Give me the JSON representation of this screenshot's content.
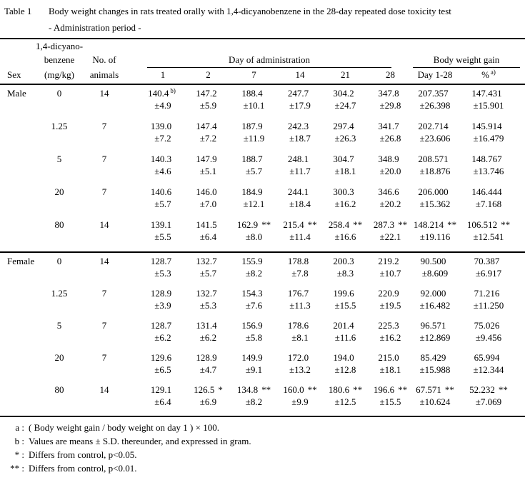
{
  "caption": {
    "number": "Table 1",
    "title": "Body weight changes in rats treated orally with 1,4-dicyanobenzene in the 28-day repeated dose toxicity test",
    "subtitle": "- Administration period -"
  },
  "header": {
    "sex": "Sex",
    "dose_line1": "1,4-dicyano-",
    "dose_line2": "benzene",
    "dose_line3": "(mg/kg)",
    "animals_line1": "No. of",
    "animals_line2": "animals",
    "day_group": "Day of administration",
    "day_columns": [
      "1",
      "2",
      "7",
      "14",
      "21",
      "28"
    ],
    "gain_group": "Body weight gain",
    "gain_column": "Day 1-28",
    "percent_column": "%",
    "percent_sup": "a)"
  },
  "sections": [
    {
      "sex": "Male",
      "rows": [
        {
          "dose": "0",
          "n": "14",
          "cells": [
            {
              "v": "140.4",
              "sup": "b)",
              "sd": "±4.9"
            },
            {
              "v": "147.2",
              "sd": "±5.9"
            },
            {
              "v": "188.4",
              "sd": "±10.1"
            },
            {
              "v": "247.7",
              "sd": "±17.9"
            },
            {
              "v": "304.2",
              "sd": "±24.7"
            },
            {
              "v": "347.8",
              "sd": "±29.8"
            },
            {
              "v": "207.357",
              "sd": "±26.398"
            },
            {
              "v": "147.431",
              "sd": "±15.901"
            }
          ]
        },
        {
          "dose": "1.25",
          "n": "7",
          "cells": [
            {
              "v": "139.0",
              "sd": "±7.2"
            },
            {
              "v": "147.4",
              "sd": "±7.2"
            },
            {
              "v": "187.9",
              "sd": "±11.9"
            },
            {
              "v": "242.3",
              "sd": "±18.7"
            },
            {
              "v": "297.4",
              "sd": "±26.3"
            },
            {
              "v": "341.7",
              "sd": "±26.8"
            },
            {
              "v": "202.714",
              "sd": "±23.606"
            },
            {
              "v": "145.914",
              "sd": "±16.479"
            }
          ]
        },
        {
          "dose": "5",
          "n": "7",
          "cells": [
            {
              "v": "140.3",
              "sd": "±4.6"
            },
            {
              "v": "147.9",
              "sd": "±5.1"
            },
            {
              "v": "188.7",
              "sd": "±5.7"
            },
            {
              "v": "248.1",
              "sd": "±11.7"
            },
            {
              "v": "304.7",
              "sd": "±18.1"
            },
            {
              "v": "348.9",
              "sd": "±20.0"
            },
            {
              "v": "208.571",
              "sd": "±18.876"
            },
            {
              "v": "148.767",
              "sd": "±13.746"
            }
          ]
        },
        {
          "dose": "20",
          "n": "7",
          "cells": [
            {
              "v": "140.6",
              "sd": "±5.7"
            },
            {
              "v": "146.0",
              "sd": "±7.0"
            },
            {
              "v": "184.9",
              "sd": "±12.1"
            },
            {
              "v": "244.1",
              "sd": "±18.4"
            },
            {
              "v": "300.3",
              "sd": "±16.2"
            },
            {
              "v": "346.6",
              "sd": "±20.2"
            },
            {
              "v": "206.000",
              "sd": "±15.362"
            },
            {
              "v": "146.444",
              "sd": "±7.168"
            }
          ]
        },
        {
          "dose": "80",
          "n": "14",
          "cells": [
            {
              "v": "139.1",
              "sd": "±5.5"
            },
            {
              "v": "141.5",
              "sd": "±6.4"
            },
            {
              "v": "162.9",
              "sig": "**",
              "sd": "±8.0"
            },
            {
              "v": "215.4",
              "sig": "**",
              "sd": "±11.4"
            },
            {
              "v": "258.4",
              "sig": "**",
              "sd": "±16.6"
            },
            {
              "v": "287.3",
              "sig": "**",
              "sd": "±22.1"
            },
            {
              "v": "148.214",
              "sig": "**",
              "sd": "±19.116"
            },
            {
              "v": "106.512",
              "sig": "**",
              "sd": "±12.541"
            }
          ]
        }
      ]
    },
    {
      "sex": "Female",
      "rows": [
        {
          "dose": "0",
          "n": "14",
          "cells": [
            {
              "v": "128.7",
              "sd": "±5.3"
            },
            {
              "v": "132.7",
              "sd": "±5.7"
            },
            {
              "v": "155.9",
              "sd": "±8.2"
            },
            {
              "v": "178.8",
              "sd": "±7.8"
            },
            {
              "v": "200.3",
              "sd": "±8.3"
            },
            {
              "v": "219.2",
              "sd": "±10.7"
            },
            {
              "v": "90.500",
              "sd": "±8.609"
            },
            {
              "v": "70.387",
              "sd": "±6.917"
            }
          ]
        },
        {
          "dose": "1.25",
          "n": "7",
          "cells": [
            {
              "v": "128.9",
              "sd": "±3.9"
            },
            {
              "v": "132.7",
              "sd": "±5.3"
            },
            {
              "v": "154.3",
              "sd": "±7.6"
            },
            {
              "v": "176.7",
              "sd": "±11.3"
            },
            {
              "v": "199.6",
              "sd": "±15.5"
            },
            {
              "v": "220.9",
              "sd": "±19.5"
            },
            {
              "v": "92.000",
              "sd": "±16.482"
            },
            {
              "v": "71.216",
              "sd": "±11.250"
            }
          ]
        },
        {
          "dose": "5",
          "n": "7",
          "cells": [
            {
              "v": "128.7",
              "sd": "±6.2"
            },
            {
              "v": "131.4",
              "sd": "±6.2"
            },
            {
              "v": "156.9",
              "sd": "±5.8"
            },
            {
              "v": "178.6",
              "sd": "±8.1"
            },
            {
              "v": "201.4",
              "sd": "±11.6"
            },
            {
              "v": "225.3",
              "sd": "±16.2"
            },
            {
              "v": "96.571",
              "sd": "±12.869"
            },
            {
              "v": "75.026",
              "sd": "±9.456"
            }
          ]
        },
        {
          "dose": "20",
          "n": "7",
          "cells": [
            {
              "v": "129.6",
              "sd": "±6.5"
            },
            {
              "v": "128.9",
              "sd": "±4.7"
            },
            {
              "v": "149.9",
              "sd": "±9.1"
            },
            {
              "v": "172.0",
              "sd": "±13.2"
            },
            {
              "v": "194.0",
              "sd": "±12.8"
            },
            {
              "v": "215.0",
              "sd": "±18.1"
            },
            {
              "v": "85.429",
              "sd": "±15.988"
            },
            {
              "v": "65.994",
              "sd": "±12.344"
            }
          ]
        },
        {
          "dose": "80",
          "n": "14",
          "cells": [
            {
              "v": "129.1",
              "sd": "±6.4"
            },
            {
              "v": "126.5",
              "sig": "*",
              "sd": "±6.9"
            },
            {
              "v": "134.8",
              "sig": "**",
              "sd": "±8.2"
            },
            {
              "v": "160.0",
              "sig": "**",
              "sd": "±9.9"
            },
            {
              "v": "180.6",
              "sig": "**",
              "sd": "±12.5"
            },
            {
              "v": "196.6",
              "sig": "**",
              "sd": "±15.5"
            },
            {
              "v": "67.571",
              "sig": "**",
              "sd": "±10.624"
            },
            {
              "v": "52.232",
              "sig": "**",
              "sd": "±7.069"
            }
          ]
        }
      ]
    }
  ],
  "footnotes": [
    {
      "label": "a :",
      "text": "( Body weight gain / body weight on day 1 ) × 100."
    },
    {
      "label": "b :",
      "text": "Values are means ± S.D. thereunder, and expressed in gram."
    },
    {
      "label": "* :",
      "text": "Differs from control, p<0.05."
    },
    {
      "label": "** :",
      "text": "Differs from control, p<0.01."
    }
  ]
}
